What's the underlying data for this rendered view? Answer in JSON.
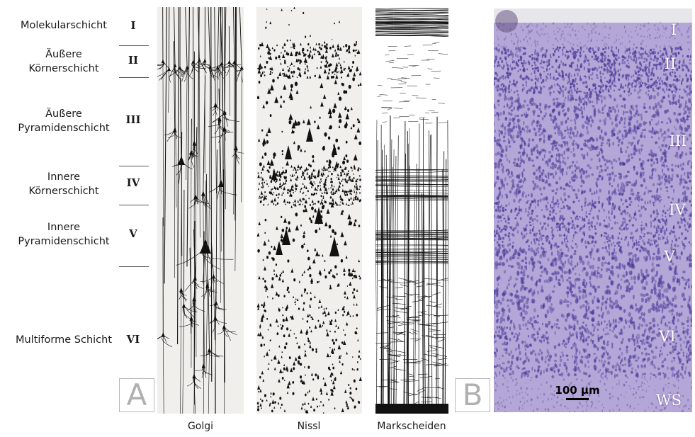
{
  "layers": [
    {
      "name": "Molekularschicht",
      "roman": "I"
    },
    {
      "name": "Äußere\nKörnerschicht",
      "roman": "II"
    },
    {
      "name": "Äußere\nPyramidenschicht",
      "roman": "III"
    },
    {
      "name": "Innere\nKörnerschicht",
      "roman": "IV"
    },
    {
      "name": "Innere\nPyramidenschicht",
      "roman": "V"
    },
    {
      "name": "Multiforme Schicht",
      "roman": "VI"
    }
  ],
  "panels": {
    "a": "A",
    "b": "B"
  },
  "columns": [
    "Golgi",
    "Nissl",
    "Markscheiden"
  ],
  "photo_labels": [
    "I",
    "II",
    "III",
    "IV",
    "V",
    "VI",
    "WS"
  ],
  "scale_bar": "100 µm",
  "colors": {
    "panel_bg": "#f1efec",
    "stain": "#111111",
    "nissl_photo": "#b4a6d6",
    "nissl_dots": "#4b3a9a"
  }
}
